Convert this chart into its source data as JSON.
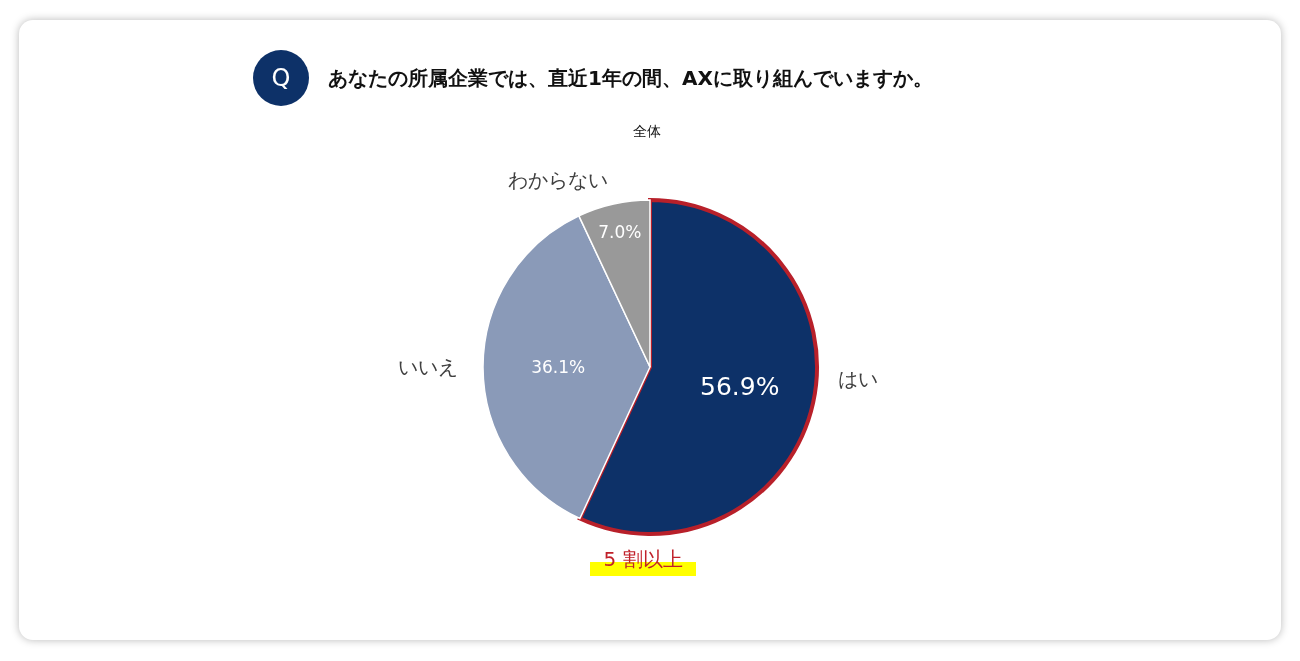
{
  "chart_data": {
    "type": "pie",
    "title": "あなたの所属企業では、直近1年の間、AXに取り組んでいますか。",
    "subtitle": "全体",
    "categories": [
      "はい",
      "いいえ",
      "わからない"
    ],
    "values": [
      56.9,
      36.1,
      7.0
    ],
    "colors": [
      "#0d3168",
      "#8a9ab8",
      "#999999"
    ],
    "value_labels": [
      "56.9%",
      "36.1%",
      "7.0%"
    ],
    "annotations": [
      "Q",
      {
        "text": "5 割以上",
        "x": "はい"
      }
    ]
  }
}
